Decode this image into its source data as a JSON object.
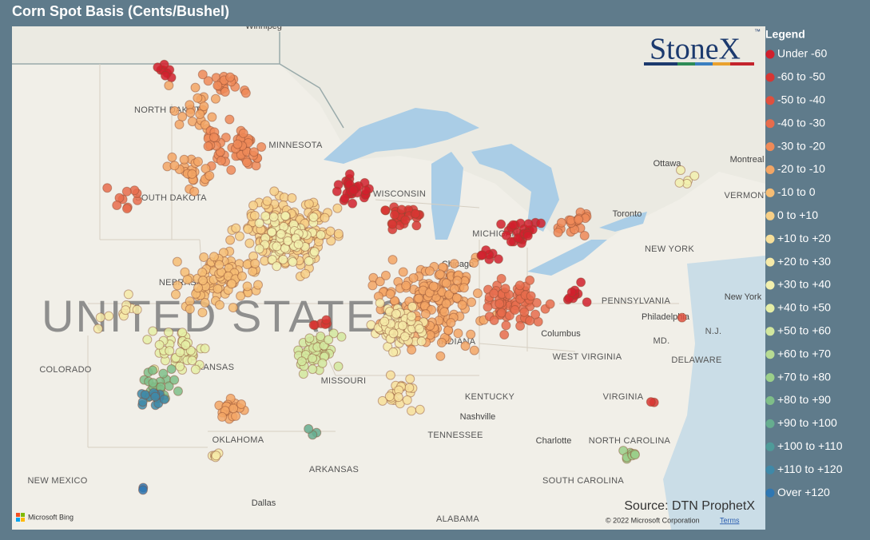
{
  "header": {
    "title": "Corn Spot Basis (Cents/Bushel)"
  },
  "logo": {
    "text": "StoneX",
    "mark": "™"
  },
  "legend": {
    "title": "Legend",
    "items": [
      {
        "label": "Under -60",
        "color": "#d1202d"
      },
      {
        "label": "-60 to -50",
        "color": "#d73633"
      },
      {
        "label": "-50 to -40",
        "color": "#df503e"
      },
      {
        "label": "-40 to -30",
        "color": "#e76c4c"
      },
      {
        "label": "-30 to -20",
        "color": "#ee8a58"
      },
      {
        "label": "-20 to -10",
        "color": "#f3a665"
      },
      {
        "label": "-10 to 0",
        "color": "#f6bd74"
      },
      {
        "label": "0 to +10",
        "color": "#f7cf86"
      },
      {
        "label": "+10 to +20",
        "color": "#f7df9a"
      },
      {
        "label": "+20 to +30",
        "color": "#f6eaa8"
      },
      {
        "label": "+30 to +40",
        "color": "#f2f0ae"
      },
      {
        "label": "+40 to +50",
        "color": "#e5eea6"
      },
      {
        "label": "+50 to +60",
        "color": "#d2e79e"
      },
      {
        "label": "+60 to +70",
        "color": "#b7db93"
      },
      {
        "label": "+70 to +80",
        "color": "#9bcf8a"
      },
      {
        "label": "+80 to +90",
        "color": "#7fbe88"
      },
      {
        "label": "+90 to +100",
        "color": "#66ad8f"
      },
      {
        "label": "+100 to +110",
        "color": "#4f9b99"
      },
      {
        "label": "+110 to +120",
        "color": "#3f89a8"
      },
      {
        "label": "Over +120",
        "color": "#2f77b2"
      }
    ]
  },
  "map": {
    "country_label": "UNITED STATES",
    "labels": [
      "Winnipeg",
      "NORTH DAKOTA",
      "MINNESOTA",
      "SOUTH DAKOTA",
      "NEBRASKA",
      "COLORADO",
      "KANSAS",
      "MISSOURI",
      "OKLAHOMA",
      "ARKANSAS",
      "NEW MEXICO",
      "Dallas",
      "ALABAMA",
      "TENNESSEE",
      "Nashville",
      "KENTUCKY",
      "Charlotte",
      "NORTH CAROLINA",
      "SOUTH CAROLINA",
      "VIRGINIA",
      "WEST VIRGINIA",
      "Columbus",
      "INDIANA",
      "Chicago",
      "MICHIGAN",
      "WISCONSIN",
      "Toronto",
      "Ottawa",
      "Montreal",
      "VERMONT",
      "NEW YORK",
      "New York",
      "PENNSYLVANIA",
      "Philadelphia",
      "N.J.",
      "MD.",
      "DELAWARE"
    ],
    "attribution": "Microsoft Bing",
    "copyright": "© 2022 Microsoft Corporation",
    "terms": "Terms"
  },
  "source": "Source: DTN ProphetX"
}
